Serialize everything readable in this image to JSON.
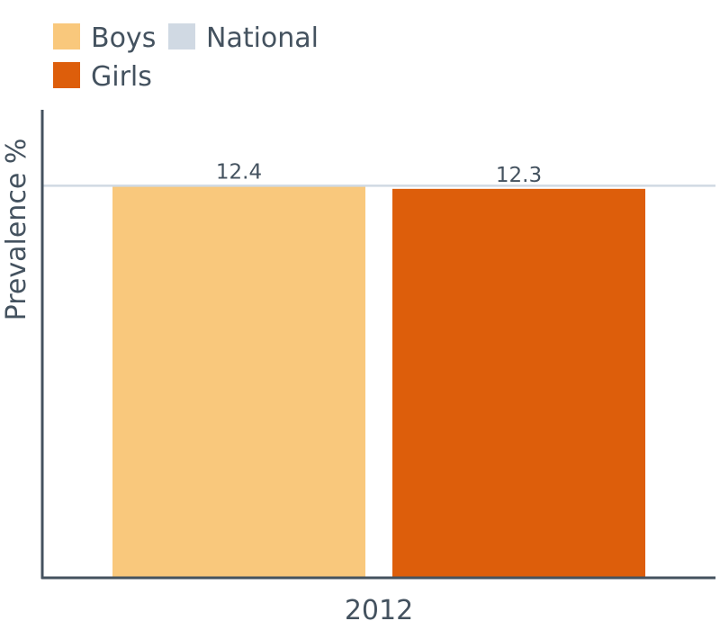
{
  "chart_data": {
    "type": "bar",
    "title": "",
    "xlabel": "",
    "ylabel": "Prevalence %",
    "categories": [
      "2012"
    ],
    "series": [
      {
        "name": "Boys",
        "values": [
          12.4
        ],
        "color": "#f9c87c"
      },
      {
        "name": "Girls",
        "values": [
          12.3
        ],
        "color": "#dd5e0b"
      }
    ],
    "reference_line": {
      "name": "National",
      "value": 12.4,
      "color": "#d0d9e3"
    },
    "legend": {
      "placement": "top-left",
      "items": [
        {
          "name": "Boys",
          "color": "#f9c87c"
        },
        {
          "name": "National",
          "color": "#d0d9e3"
        },
        {
          "name": "Girls",
          "color": "#dd5e0b"
        }
      ]
    },
    "ylim": [
      0,
      14.8
    ],
    "grid": false,
    "text_color": "#44525f",
    "axis_color": "#44525f"
  }
}
